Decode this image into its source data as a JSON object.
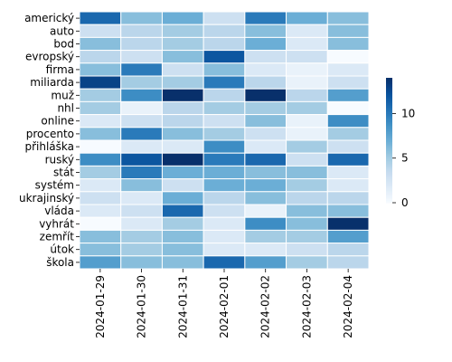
{
  "chart_data": {
    "type": "heatmap",
    "title": "",
    "xlabel": "",
    "ylabel": "",
    "x_categories": [
      "2024-01-29",
      "2024-01-30",
      "2024-01-31",
      "2024-02-01",
      "2024-02-02",
      "2024-02-03",
      "2024-02-04"
    ],
    "y_categories": [
      "americký",
      "auto",
      "bod",
      "evropský",
      "firma",
      "miliarda",
      "muž",
      "nhl",
      "online",
      "procento",
      "přihláška",
      "ruský",
      "stát",
      "systém",
      "ukrajinský",
      "vláda",
      "vyhrát",
      "zemřít",
      "útok",
      "škola"
    ],
    "values": [
      [
        11,
        6,
        7,
        3,
        10,
        7,
        6
      ],
      [
        3,
        4,
        5,
        4,
        6,
        2,
        6
      ],
      [
        6,
        4,
        5,
        4,
        7,
        2,
        6
      ],
      [
        4,
        3,
        6,
        12,
        3,
        3,
        0
      ],
      [
        6,
        10,
        3,
        6,
        2,
        1,
        2
      ],
      [
        13,
        5,
        5,
        10,
        4,
        1,
        3
      ],
      [
        5,
        9,
        14,
        4,
        14,
        4,
        8
      ],
      [
        5,
        1,
        4,
        5,
        5,
        5,
        0
      ],
      [
        2,
        3,
        4,
        3,
        6,
        1,
        9
      ],
      [
        6,
        10,
        6,
        5,
        3,
        1,
        5
      ],
      [
        0,
        2,
        2,
        9,
        2,
        5,
        3
      ],
      [
        9,
        12,
        14,
        10,
        11,
        3,
        11
      ],
      [
        5,
        10,
        7,
        7,
        6,
        6,
        2
      ],
      [
        2,
        6,
        3,
        7,
        7,
        5,
        2
      ],
      [
        3,
        2,
        7,
        4,
        6,
        4,
        4
      ],
      [
        2,
        3,
        11,
        3,
        1,
        6,
        6
      ],
      [
        0,
        2,
        5,
        2,
        9,
        6,
        14
      ],
      [
        6,
        5,
        6,
        2,
        5,
        5,
        8
      ],
      [
        6,
        5,
        6,
        2,
        2,
        3,
        4
      ],
      [
        8,
        6,
        6,
        11,
        8,
        5,
        4
      ]
    ],
    "colorbar": {
      "min": 0,
      "max": 14,
      "ticks": [
        0,
        5,
        10
      ]
    },
    "colormap": "Blues",
    "colors": {
      "low": "#f7fbff",
      "high": "#08306b",
      "cell_border": "#ffffff"
    },
    "grid": false,
    "legend": "colorbar-right"
  }
}
